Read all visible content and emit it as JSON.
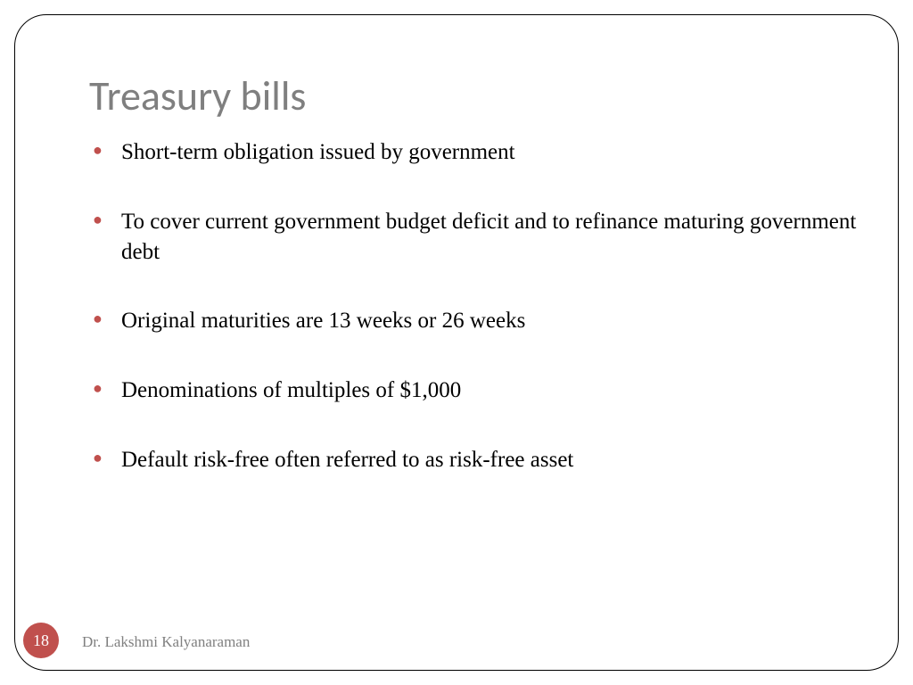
{
  "slide": {
    "title": "Treasury bills",
    "title_color": "#7f7f7f",
    "title_fontsize": 46,
    "bullets": [
      "Short-term obligation issued by government",
      "To cover current government budget deficit and to refinance maturing government debt",
      "Original maturities are 13 weeks or 26 weeks",
      "Denominations of multiples of $1,000",
      "Default risk-free often referred to as risk-free asset"
    ],
    "bullet_color": "#c0504d",
    "body_fontsize": 25,
    "body_color": "#000000",
    "page_number": "18",
    "page_badge_bg": "#c0504d",
    "page_badge_fg": "#ffffff",
    "author": "Dr. Lakshmi Kalyanaraman",
    "author_color": "#808080",
    "frame_border_color": "#000000",
    "frame_radius": 36,
    "background_color": "#ffffff"
  }
}
